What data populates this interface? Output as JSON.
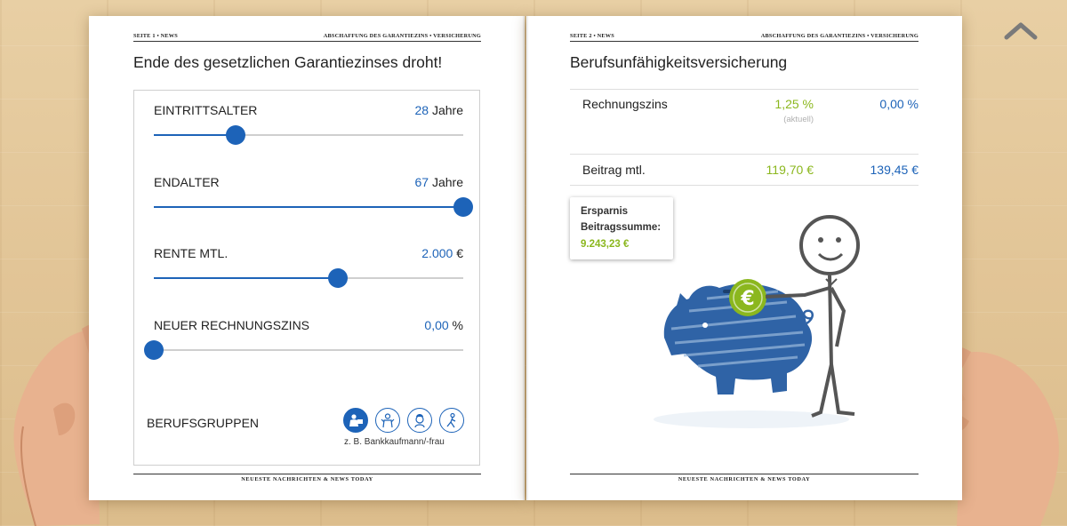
{
  "left_page": {
    "header_left": "SEITE 1 • NEWS",
    "header_right": "ABSCHAFFUNG DES GARANTIEZINS • VERSICHERUNG",
    "title": "Ende des gesetzlichen Garantiezinses droht!",
    "sliders": [
      {
        "label": "EINTRITTSALTER",
        "value": "28",
        "unit": "Jahre",
        "fraction": 0.265
      },
      {
        "label": "ENDALTER",
        "value": "67",
        "unit": "Jahre",
        "fraction": 1.0
      },
      {
        "label": "RENTE MTL.",
        "value": "2.000",
        "unit": "€",
        "fraction": 0.595
      },
      {
        "label": "NEUER RECHNUNGSZINS",
        "value": "0,00",
        "unit": "%",
        "fraction": 0.0
      }
    ],
    "professions_label": "BERUFSGRUPPEN",
    "professions_icons": [
      "office-worker-icon",
      "craftsman-icon",
      "nurse-icon",
      "physical-worker-icon"
    ],
    "professions_caption": "z. B. Bankkaufmann/-frau",
    "footer": "NEUESTE  NACHRICHTEN    &    NEWS  TODAY"
  },
  "right_page": {
    "header_left": "SEITE 2 • NEWS",
    "header_right": "ABSCHAFFUNG DES GARANTIEZINS • VERSICHERUNG",
    "title": "Berufsunfähigkeitsversicherung",
    "rows": [
      {
        "label": "Rechnungszins",
        "current": "1,25 %",
        "current_note": "(aktuell)",
        "new": "0,00 %"
      },
      {
        "label": "Beitrag mtl.",
        "current": "119,70 €",
        "new": "139,45 €"
      }
    ],
    "tooltip": {
      "line1": "Ersparnis",
      "line2": "Beitragssumme:",
      "value": "9.243,23 €"
    },
    "illustration": "piggy-bank-stick-figure",
    "footer": "NEUESTE  NACHRICHTEN    &    NEWS  TODAY"
  },
  "colors": {
    "accent_blue": "#1d63b8",
    "accent_green": "#8bb71e",
    "track_gray": "#cfcfcf"
  },
  "nav": {
    "up_icon": "chevron-up-icon"
  }
}
